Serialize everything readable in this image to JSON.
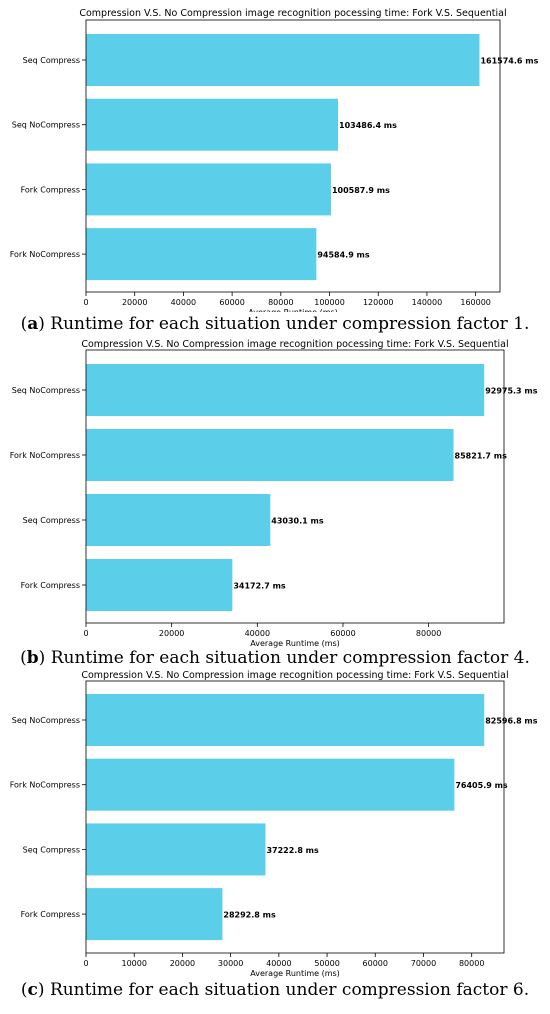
{
  "chart_data": [
    {
      "type": "bar",
      "orientation": "horizontal",
      "title": "Compression V.S. No Compression image recognition pocessing time: Fork V.S. Sequential",
      "xlabel": "Average Runtime (ms)",
      "ylabel": "",
      "categories": [
        "Seq Compress",
        "Seq NoCompress",
        "Fork Compress",
        "Fork NoCompress"
      ],
      "values": [
        161574.6,
        103486.4,
        100587.9,
        94584.9
      ],
      "value_labels": [
        "161574.6 ms",
        "103486.4 ms",
        "100587.9 ms",
        "94584.9 ms"
      ],
      "xlim": [
        0,
        170000
      ],
      "xticks": [
        0,
        20000,
        40000,
        60000,
        80000,
        100000,
        120000,
        140000,
        160000
      ],
      "bar_color": "#5bcfea",
      "grid": false,
      "caption_label": "a",
      "caption_text": "Runtime for each situation under compression factor 1."
    },
    {
      "type": "bar",
      "orientation": "horizontal",
      "title": "Compression V.S. No Compression image recognition pocessing time: Fork V.S. Sequential",
      "xlabel": "Average Runtime (ms)",
      "ylabel": "",
      "categories": [
        "Seq NoCompress",
        "Fork NoCompress",
        "Seq Compress",
        "Fork Compress"
      ],
      "values": [
        92975.3,
        85821.7,
        43030.1,
        34172.7
      ],
      "value_labels": [
        "92975.3 ms",
        "85821.7 ms",
        "43030.1 ms",
        "34172.7 ms"
      ],
      "xlim": [
        0,
        97600
      ],
      "xticks": [
        0,
        20000,
        40000,
        60000,
        80000
      ],
      "bar_color": "#5bcfea",
      "grid": false,
      "caption_label": "b",
      "caption_text": "Runtime for each situation under compression factor 4."
    },
    {
      "type": "bar",
      "orientation": "horizontal",
      "title": "Compression V.S. No Compression image recognition pocessing time: Fork V.S. Sequential",
      "xlabel": "Average Runtime (ms)",
      "ylabel": "",
      "categories": [
        "Seq NoCompress",
        "Fork NoCompress",
        "Seq Compress",
        "Fork Compress"
      ],
      "values": [
        82596.8,
        76405.9,
        37222.8,
        28292.8
      ],
      "value_labels": [
        "82596.8 ms",
        "76405.9 ms",
        "37222.8 ms",
        "28292.8 ms"
      ],
      "xlim": [
        0,
        86700
      ],
      "xticks": [
        0,
        10000,
        20000,
        30000,
        40000,
        50000,
        60000,
        70000,
        80000
      ],
      "bar_color": "#5bcfea",
      "grid": false,
      "caption_label": "c",
      "caption_text": "Runtime for each situation under compression factor 6."
    }
  ]
}
